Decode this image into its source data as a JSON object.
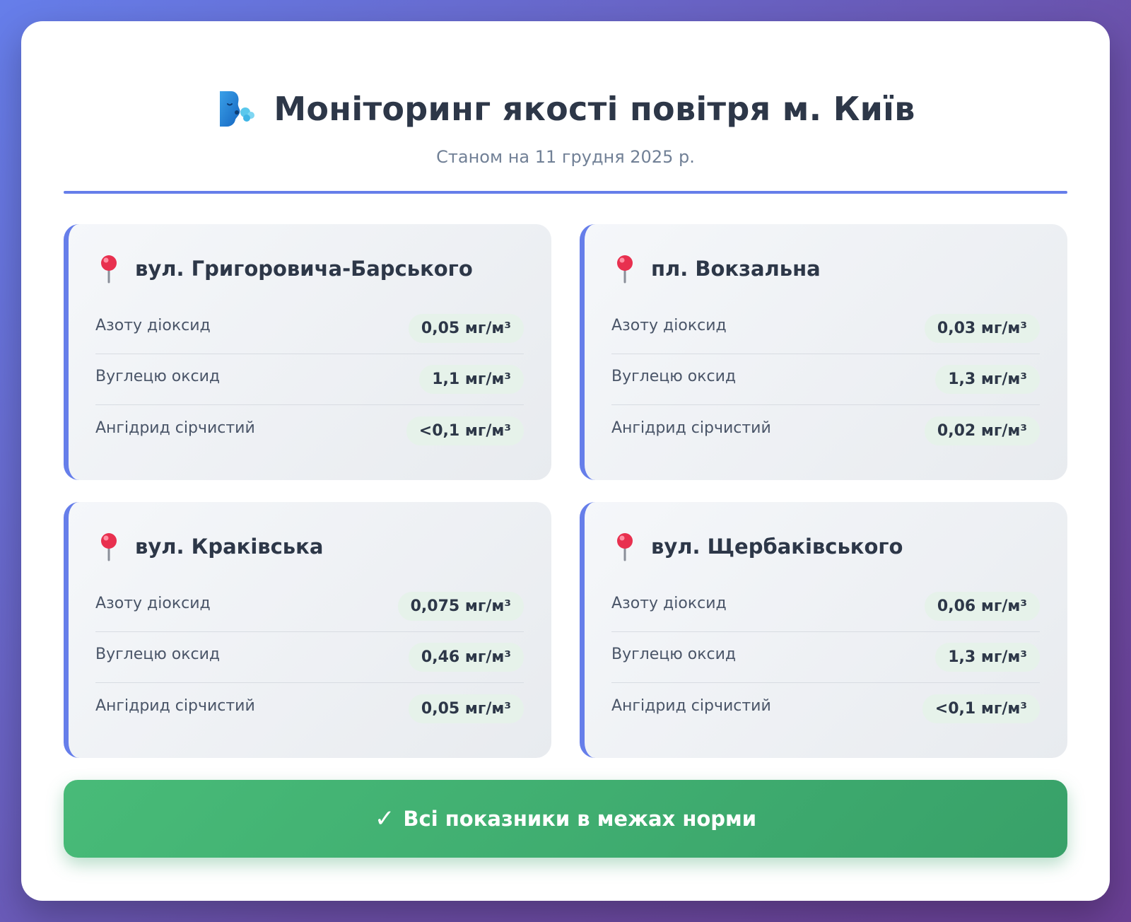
{
  "header": {
    "icon": "wind-face-icon",
    "title": "Моніторинг якості повітря м. Київ",
    "subtitle": "Станом на 11 грудня 2025 р."
  },
  "locations": [
    {
      "icon": "round-pushpin-icon",
      "name": "вул. Григоровича-Барського",
      "readings": [
        {
          "label": "Азоту діоксид",
          "value": "0,05 мг/м³"
        },
        {
          "label": "Вуглецю оксид",
          "value": "1,1 мг/м³"
        },
        {
          "label": "Ангідрид сірчистий",
          "value": "<0,1 мг/м³"
        }
      ]
    },
    {
      "icon": "round-pushpin-icon",
      "name": "пл. Вокзальна",
      "readings": [
        {
          "label": "Азоту діоксид",
          "value": "0,03 мг/м³"
        },
        {
          "label": "Вуглецю оксид",
          "value": "1,3 мг/м³"
        },
        {
          "label": "Ангідрид сірчистий",
          "value": "0,02 мг/м³"
        }
      ]
    },
    {
      "icon": "round-pushpin-icon",
      "name": "вул. Краківська",
      "readings": [
        {
          "label": "Азоту діоксид",
          "value": "0,075 мг/м³"
        },
        {
          "label": "Вуглецю оксид",
          "value": "0,46 мг/м³"
        },
        {
          "label": "Ангідрид сірчистий",
          "value": "0,05 мг/м³"
        }
      ]
    },
    {
      "icon": "round-pushpin-icon",
      "name": "вул. Щербаківського",
      "readings": [
        {
          "label": "Азоту діоксид",
          "value": "0,06 мг/м³"
        },
        {
          "label": "Вуглецю оксид",
          "value": "1,3 мг/м³"
        },
        {
          "label": "Ангідрид сірчистий",
          "value": "<0,1 мг/м³"
        }
      ]
    }
  ],
  "status": {
    "icon": "check-mark-icon",
    "check": "✓",
    "text": "Всі показники в межах норми"
  },
  "colors": {
    "accent": "#667eea",
    "status_green": "#48bb78",
    "title": "#2d3748",
    "subtitle": "#718096"
  }
}
